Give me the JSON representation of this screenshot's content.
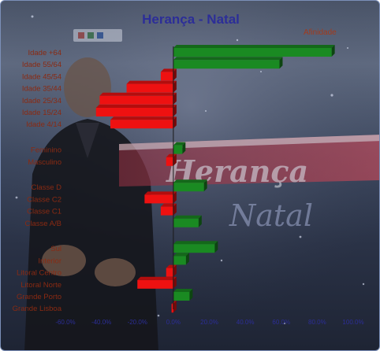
{
  "colors": {
    "positive": "#1a8a22",
    "negative": "#ee1111",
    "title": "#2c2e98",
    "category_text": "#8a2a12",
    "tick_text": "#2c2e98",
    "legend_text": "#a23a1c"
  },
  "background": {
    "icons": [
      "rtp1-logo",
      "presenter-photo",
      "heranca-natal-logo",
      "snowflakes"
    ],
    "logo_text": "Herança Natal"
  },
  "chart_data": {
    "type": "bar",
    "orientation": "horizontal",
    "title": "Herança - Natal",
    "legend": [
      "Afinidade"
    ],
    "legend_position": "top-right",
    "xlim": [
      -60,
      100
    ],
    "x_ticks": [
      "-60.0%",
      "-40.0%",
      "-20.0%",
      "0.0%",
      "20.0%",
      "40.0%",
      "60.0%",
      "80.0%",
      "100.0%"
    ],
    "grid": false,
    "groups": [
      {
        "categories": [
          "Idade +64",
          "Idade 55/64",
          "Idade 45/54",
          "Idade 35/44",
          "Idade 25/34",
          "Idade 15/24",
          "Idade 4/14"
        ],
        "values": [
          88,
          59,
          -7,
          -26,
          -41,
          -43,
          -35
        ]
      },
      {
        "categories": [
          "Feminino",
          "Masculino"
        ],
        "values": [
          5,
          -4
        ]
      },
      {
        "categories": [
          "Classe D",
          "Classe C2",
          "Classe C1",
          "Classe A/B"
        ],
        "values": [
          17,
          -16,
          -7,
          14
        ]
      },
      {
        "categories": [
          "Sul",
          "Interior",
          "Litoral Centro",
          "Litoral Norte",
          "Grande Porto",
          "Grande Lisboa"
        ],
        "values": [
          23,
          7,
          -4,
          -20,
          9,
          -1
        ]
      }
    ]
  }
}
